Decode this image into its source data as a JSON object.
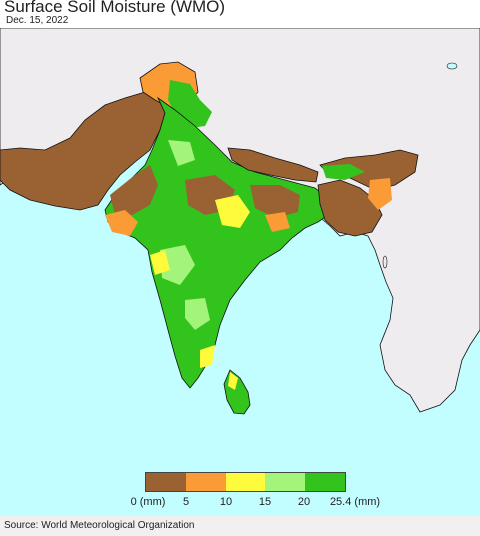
{
  "title": "Surface Soil Moisture (WMO)",
  "date": "Dec. 15, 2022",
  "legend": {
    "colors": [
      "#9a6233",
      "#fb9b36",
      "#fdfb3c",
      "#a3f47a",
      "#32c41c"
    ],
    "ticks": [
      "0 (mm)",
      "5",
      "10",
      "15",
      "20",
      "25.4 (mm)"
    ]
  },
  "map": {
    "ocean_color": "#c2feff",
    "land_no_data_color": "#efecef",
    "border_color": "#111111"
  },
  "source": "Source: World Meteorological Organization"
}
